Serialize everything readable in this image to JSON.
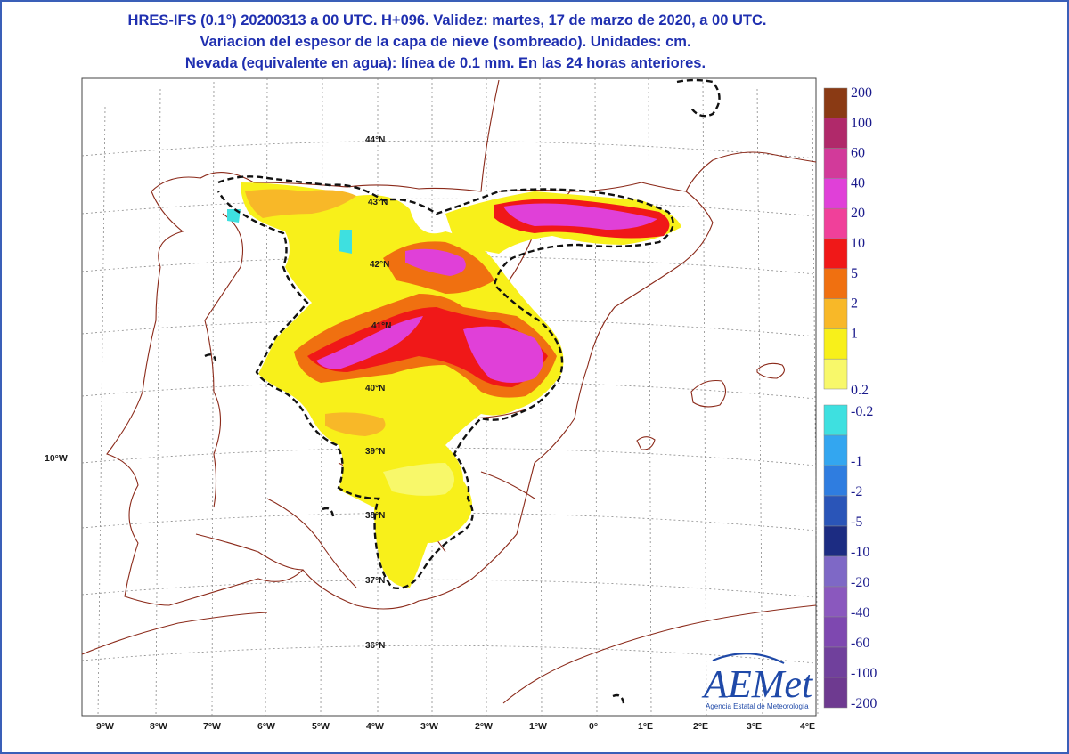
{
  "header": {
    "line1": "HRES-IFS (0.1°) 20200313 a 00 UTC.  H+096. Validez: martes, 17 de marzo de 2020,  a  00 UTC.",
    "line2": "Variacion del espesor de la capa de nieve (sombreado). Unidades: cm.",
    "line3": "Nevada (equivalente en agua): línea de 0.1 mm. En las 24 horas anteriores."
  },
  "axes": {
    "lon_labels": [
      "9°W",
      "8°W",
      "7°W",
      "6°W",
      "5°W",
      "4°W",
      "3°W",
      "2°W",
      "1°W",
      "0°",
      "1°E",
      "2°E",
      "3°E",
      "4°E"
    ],
    "lat_labels": [
      "44°N",
      "43°N",
      "42°N",
      "41°N",
      "40°N",
      "39°N",
      "38°N",
      "37°N",
      "36°N"
    ],
    "side_label": "10°W"
  },
  "colorbar": {
    "labels": [
      "200",
      "100",
      "60",
      "40",
      "20",
      "10",
      "5",
      "2",
      "1",
      "0.2",
      "-0.2",
      "-1",
      "-2",
      "-5",
      "-10",
      "-20",
      "-40",
      "-60",
      "-100",
      "-200"
    ],
    "colors": [
      "#8a3a14",
      "#b0296a",
      "#d23a9a",
      "#e040d8",
      "#f0409a",
      "#f01818",
      "#f07010",
      "#f8b828",
      "#f8f01a",
      "#f8f86a",
      "#3ee0e0",
      "#33a6f0",
      "#2f7de0",
      "#2a55b8",
      "#1c2c82",
      "#7e68c6",
      "#8a58be",
      "#7e48b0",
      "#70409c",
      "#6e3a90"
    ]
  },
  "logo": {
    "name": "AEMet",
    "subtitle": "Agencia Estatal de Meteorología"
  }
}
